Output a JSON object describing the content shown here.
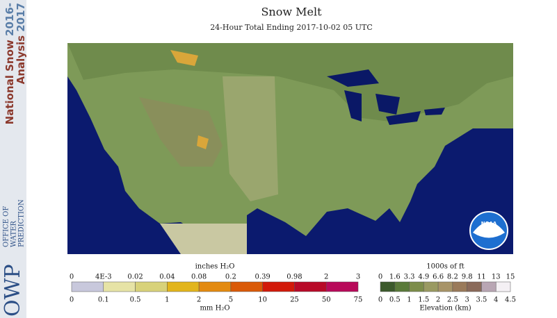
{
  "sidebar": {
    "line1": [
      "National Snow",
      "2016-"
    ],
    "line2": [
      "Analysis",
      "2017"
    ],
    "logo": "OWP",
    "office": [
      "OFFICE OF",
      "WATER",
      "PREDICTION"
    ]
  },
  "header": {
    "title": "Snow Melt",
    "subtitle": "24-Hour Total Ending 2017-10-02 05 UTC"
  },
  "map": {
    "logo": "NOAA"
  },
  "legend_melt": {
    "top_title": "inches H₂O",
    "top_labels": [
      "0",
      "4E-3",
      "0.02",
      "0.04",
      "0.08",
      "0.2",
      "0.39",
      "0.98",
      "2",
      "3"
    ],
    "bottom_labels": [
      "0",
      "0.1",
      "0.5",
      "1",
      "2",
      "5",
      "10",
      "25",
      "50",
      "75"
    ],
    "bottom_title": "mm H₂O"
  },
  "legend_elev": {
    "top_title": "1000s of ft",
    "top_labels": [
      "0",
      "1.6",
      "3.3",
      "4.9",
      "6.6",
      "8.2",
      "9.8",
      "11",
      "13",
      "15"
    ],
    "bottom_labels": [
      "0",
      "0.5",
      "1",
      "1.5",
      "2",
      "2.5",
      "3",
      "3.5",
      "4",
      "4.5"
    ],
    "bottom_title": "Elevation (km)"
  }
}
